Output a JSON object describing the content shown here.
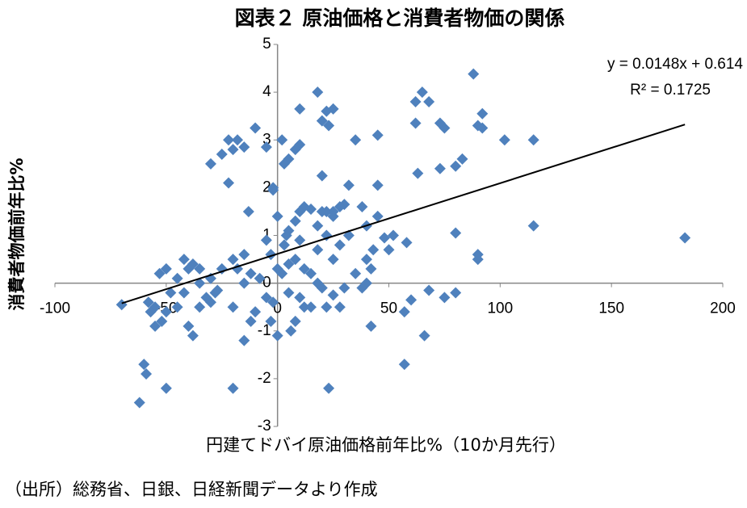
{
  "chart_data": {
    "type": "scatter",
    "title": "図表２ 原油価格と消費者物価の関係",
    "x_label": "円建てドバイ原油価格前年比%（10か月先行）",
    "y_label": "消費者物価前年比%",
    "source": "（出所）総務省、日銀、日経新聞データより作成",
    "equation": "y = 0.0148x + 0.614",
    "r_squared": "R² = 0.1725",
    "trendline": {
      "slope": 0.0148,
      "intercept": 0.614,
      "xrange": [
        -70,
        183
      ]
    },
    "color": "#4f81bd",
    "xlim": [
      -100,
      200
    ],
    "ylim": [
      -3,
      5
    ],
    "xticks": [
      -100,
      -50,
      0,
      50,
      100,
      150,
      200
    ],
    "yticks": [
      -3,
      -2,
      -1,
      0,
      1,
      2,
      3,
      4,
      5
    ],
    "x": [
      183,
      115,
      115,
      102,
      92,
      90,
      88,
      92,
      90,
      90,
      83,
      80,
      80,
      80,
      75,
      73,
      73,
      68,
      65,
      62,
      62,
      63,
      68,
      66,
      58,
      57,
      57,
      60,
      75,
      52,
      50,
      45,
      45,
      45,
      43,
      40,
      42,
      40,
      38,
      35,
      32,
      32,
      30,
      28,
      25,
      25,
      22,
      25,
      23,
      20,
      18,
      20,
      20,
      22,
      22,
      18,
      15,
      12,
      10,
      8,
      5,
      10,
      8,
      5,
      3,
      10,
      2,
      -2,
      -2,
      0,
      4,
      -5,
      -3,
      0,
      2,
      5,
      8,
      12,
      15,
      18,
      20,
      10,
      12,
      8,
      6,
      0,
      -3,
      -5,
      -10,
      -12,
      -15,
      -8,
      -12,
      -15,
      -18,
      -20,
      -20,
      -15,
      -13,
      -15,
      -20,
      -22,
      -18,
      -10,
      -5,
      -25,
      -30,
      -22,
      -20,
      -25,
      -28,
      -30,
      -35,
      -35,
      -38,
      -40,
      -40,
      -38,
      -42,
      -45,
      -48,
      -50,
      -52,
      -55,
      -55,
      -57,
      -50,
      -53,
      -58,
      -60,
      -59,
      -62,
      -50,
      -70,
      -45,
      -32,
      -27,
      -30,
      25,
      28,
      22,
      23,
      30,
      35,
      38,
      48,
      40,
      42,
      15,
      5,
      -2,
      18,
      25,
      28,
      3,
      10,
      -35,
      -42
    ],
    "values": [
      0.95,
      1.2,
      3.0,
      3.0,
      3.55,
      3.3,
      4.38,
      3.25,
      0.5,
      0.6,
      2.6,
      2.45,
      1.05,
      -0.2,
      3.25,
      3.35,
      2.4,
      3.8,
      4.0,
      3.8,
      3.35,
      2.3,
      -0.15,
      -1.1,
      0.85,
      -0.6,
      -1.7,
      -0.35,
      -0.3,
      1.0,
      0.7,
      3.1,
      2.05,
      1.4,
      0.7,
      0.5,
      -0.9,
      0.0,
      1.6,
      3.0,
      2.05,
      1.0,
      1.65,
      1.6,
      1.5,
      0.5,
      3.6,
      3.65,
      3.3,
      3.4,
      4.0,
      2.25,
      1.5,
      1.5,
      1.0,
      0.7,
      1.55,
      1.6,
      1.5,
      1.3,
      1.1,
      2.9,
      2.8,
      2.6,
      2.5,
      3.65,
      3.0,
      2.0,
      1.95,
      1.4,
      1.0,
      0.9,
      0.6,
      0.3,
      0.2,
      0.4,
      0.5,
      0.3,
      0.2,
      0.0,
      -0.1,
      -0.3,
      -0.5,
      -0.8,
      -1.0,
      -1.1,
      -0.8,
      -0.3,
      -0.6,
      -0.8,
      -1.2,
      0.1,
      0.2,
      0.0,
      0.3,
      -0.5,
      -2.2,
      0.6,
      1.5,
      2.85,
      2.8,
      3.0,
      3.0,
      3.25,
      2.85,
      2.7,
      2.5,
      2.1,
      0.5,
      0.3,
      -0.2,
      -0.4,
      0.0,
      -0.5,
      -1.1,
      -0.9,
      0.3,
      0.4,
      0.5,
      0.1,
      -0.2,
      -0.6,
      -0.8,
      -0.9,
      -0.5,
      -0.6,
      0.3,
      0.2,
      -0.4,
      -1.7,
      -1.9,
      -2.5,
      -2.2,
      -0.45,
      -0.5,
      -0.3,
      -0.15,
      0.1,
      -0.25,
      -0.5,
      -0.5,
      -2.2,
      -0.1,
      0.2,
      -0.1,
      0.95,
      1.2,
      0.3,
      -0.5,
      -0.2,
      -0.4,
      1.2,
      1.4,
      0.8,
      0.8,
      0.9,
      0.3,
      -0.2
    ]
  }
}
